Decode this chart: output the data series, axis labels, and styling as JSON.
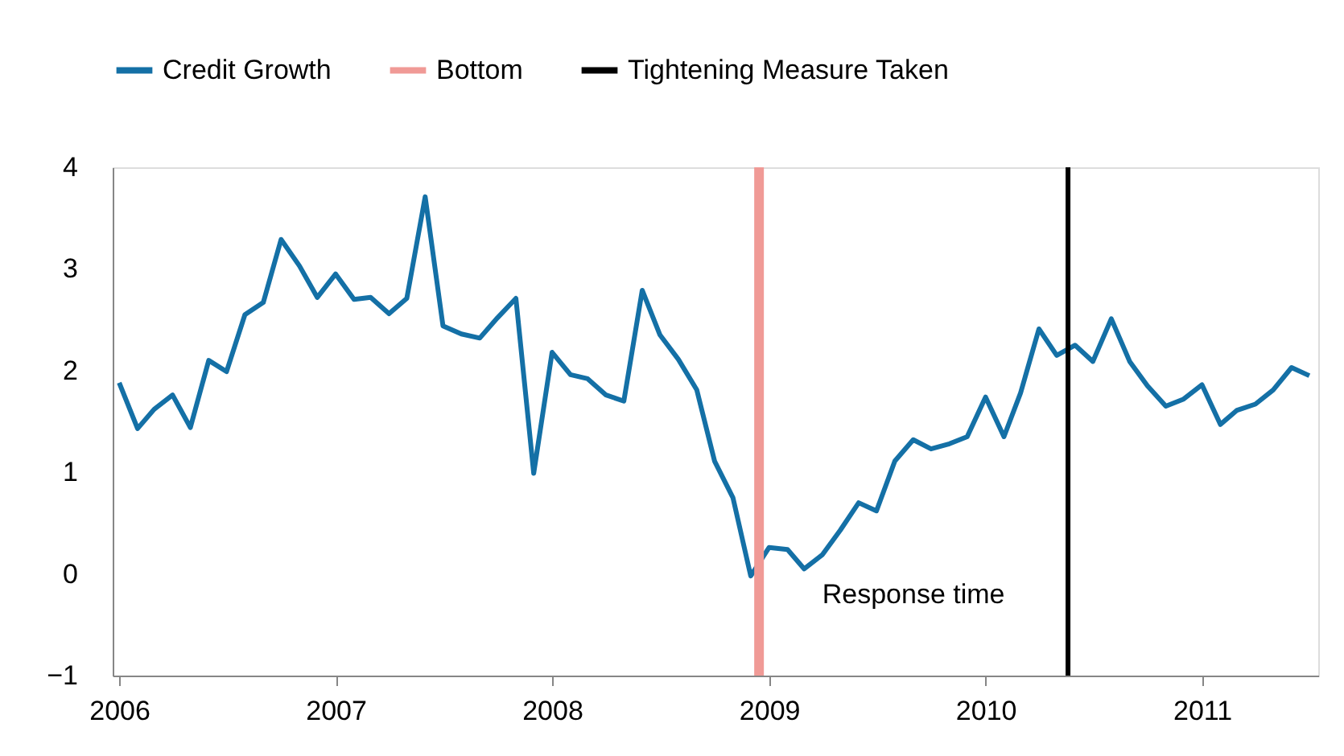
{
  "chart_data": {
    "type": "line",
    "x": [
      "2006-01",
      "2006-02",
      "2006-03",
      "2006-04",
      "2006-05",
      "2006-06",
      "2006-07",
      "2006-08",
      "2006-09",
      "2006-10",
      "2006-11",
      "2006-12",
      "2007-01",
      "2007-02",
      "2007-03",
      "2007-04",
      "2007-05",
      "2007-06",
      "2007-07",
      "2007-08",
      "2007-09",
      "2007-10",
      "2007-11",
      "2007-12",
      "2008-01",
      "2008-02",
      "2008-03",
      "2008-04",
      "2008-05",
      "2008-06",
      "2008-07",
      "2008-08",
      "2008-09",
      "2008-10",
      "2008-11",
      "2008-12",
      "2009-01",
      "2009-02",
      "2009-03",
      "2009-04",
      "2009-05",
      "2009-06",
      "2009-07",
      "2009-08",
      "2009-09",
      "2009-10",
      "2009-11",
      "2009-12",
      "2010-01",
      "2010-02",
      "2010-03",
      "2010-04",
      "2010-05",
      "2010-06",
      "2010-07",
      "2010-08",
      "2010-09",
      "2010-10",
      "2010-11",
      "2010-12",
      "2011-01",
      "2011-02",
      "2011-03",
      "2011-04",
      "2011-05",
      "2011-06",
      "2011-07"
    ],
    "series": [
      {
        "name": "Credit Growth",
        "color": "#1470a6",
        "values": [
          1.88,
          1.43,
          1.62,
          1.76,
          1.44,
          2.1,
          1.99,
          2.55,
          2.67,
          3.29,
          3.03,
          2.72,
          2.95,
          2.7,
          2.72,
          2.56,
          2.71,
          3.71,
          2.44,
          2.36,
          2.32,
          2.52,
          2.71,
          0.99,
          2.18,
          1.96,
          1.92,
          1.76,
          1.7,
          2.79,
          2.35,
          2.11,
          1.81,
          1.11,
          0.75,
          -0.02,
          0.26,
          0.24,
          0.05,
          0.19,
          0.43,
          0.7,
          0.62,
          1.11,
          1.32,
          1.23,
          1.28,
          1.35,
          1.74,
          1.35,
          1.78,
          2.41,
          2.15,
          2.25,
          2.09,
          2.51,
          2.09,
          1.85,
          1.65,
          1.72,
          1.86,
          1.47,
          1.61,
          1.67,
          1.81,
          2.03,
          1.95
        ]
      }
    ],
    "ref_lines": [
      {
        "axis": "x",
        "value": "2008-12-15",
        "label": "Bottom",
        "color": "#f09a96"
      },
      {
        "axis": "x",
        "value": "2010-05-20",
        "label": "Tightening Measure Taken",
        "color": "#000000"
      }
    ],
    "annotations": [
      "Response time"
    ],
    "xlim": [
      "2005-12-21",
      "2011-07-16"
    ],
    "xticks": [
      {
        "value": "2006-01-01",
        "label": "2006"
      },
      {
        "value": "2007-01-01",
        "label": "2007"
      },
      {
        "value": "2008-01-01",
        "label": "2008"
      },
      {
        "value": "2009-01-01",
        "label": "2009"
      },
      {
        "value": "2010-01-01",
        "label": "2010"
      },
      {
        "value": "2011-01-01",
        "label": "2011"
      }
    ],
    "ylim": [
      -1,
      4
    ],
    "yticks": [
      -1,
      0,
      1,
      2,
      3,
      4
    ],
    "grid": false,
    "legend": "top",
    "marker": "none",
    "line_style": "solid"
  }
}
